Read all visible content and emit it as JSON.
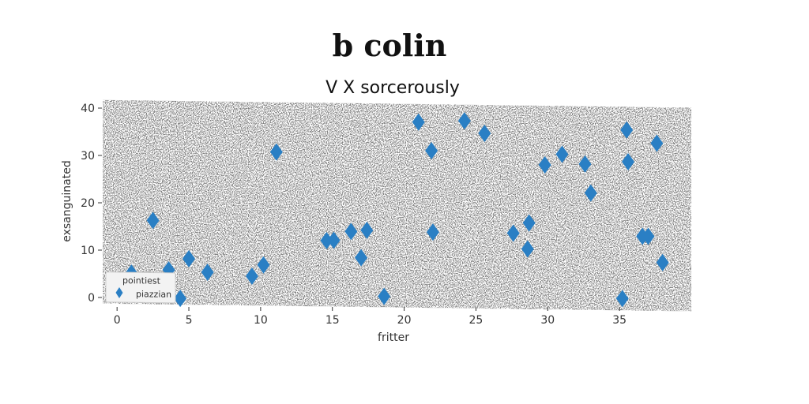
{
  "chart_data": {
    "type": "scatter",
    "title": "b colin",
    "subtitle": "V X sorcerously",
    "xlabel": "fritter",
    "ylabel": "exsanguinated",
    "xlim": [
      -1,
      40
    ],
    "ylim": [
      -1,
      42
    ],
    "xticks": [
      0,
      5,
      10,
      15,
      20,
      25,
      30,
      35
    ],
    "yticks": [
      0,
      10,
      20,
      30,
      40
    ],
    "grid": false,
    "legend": {
      "title": "pointiest",
      "placement": "bottom-left"
    },
    "colors": {
      "plot_background": "#808080",
      "marker": "#2a7fc4"
    },
    "series": [
      {
        "name": "piazzian",
        "marker": "diamond",
        "x": [
          1.0,
          2.5,
          3.6,
          4.4,
          5.0,
          6.3,
          9.4,
          10.2,
          11.1,
          14.6,
          15.1,
          16.3,
          17.0,
          17.4,
          18.6,
          21.0,
          21.9,
          22.0,
          24.2,
          25.6,
          27.6,
          28.6,
          28.7,
          29.8,
          31.0,
          32.6,
          33.0,
          35.2,
          35.5,
          35.6,
          36.6,
          37.0,
          37.6,
          38.0
        ],
        "y": [
          5.5,
          16.7,
          6.3,
          0.3,
          8.7,
          5.9,
          5.2,
          7.6,
          31.5,
          12.9,
          13.0,
          14.9,
          9.4,
          15.2,
          1.3,
          38.2,
          32.2,
          15.0,
          38.6,
          36.0,
          15.0,
          11.7,
          17.2,
          29.5,
          31.8,
          29.8,
          23.7,
          1.5,
          37.1,
          30.4,
          14.7,
          14.7,
          34.4,
          9.2
        ]
      }
    ]
  }
}
